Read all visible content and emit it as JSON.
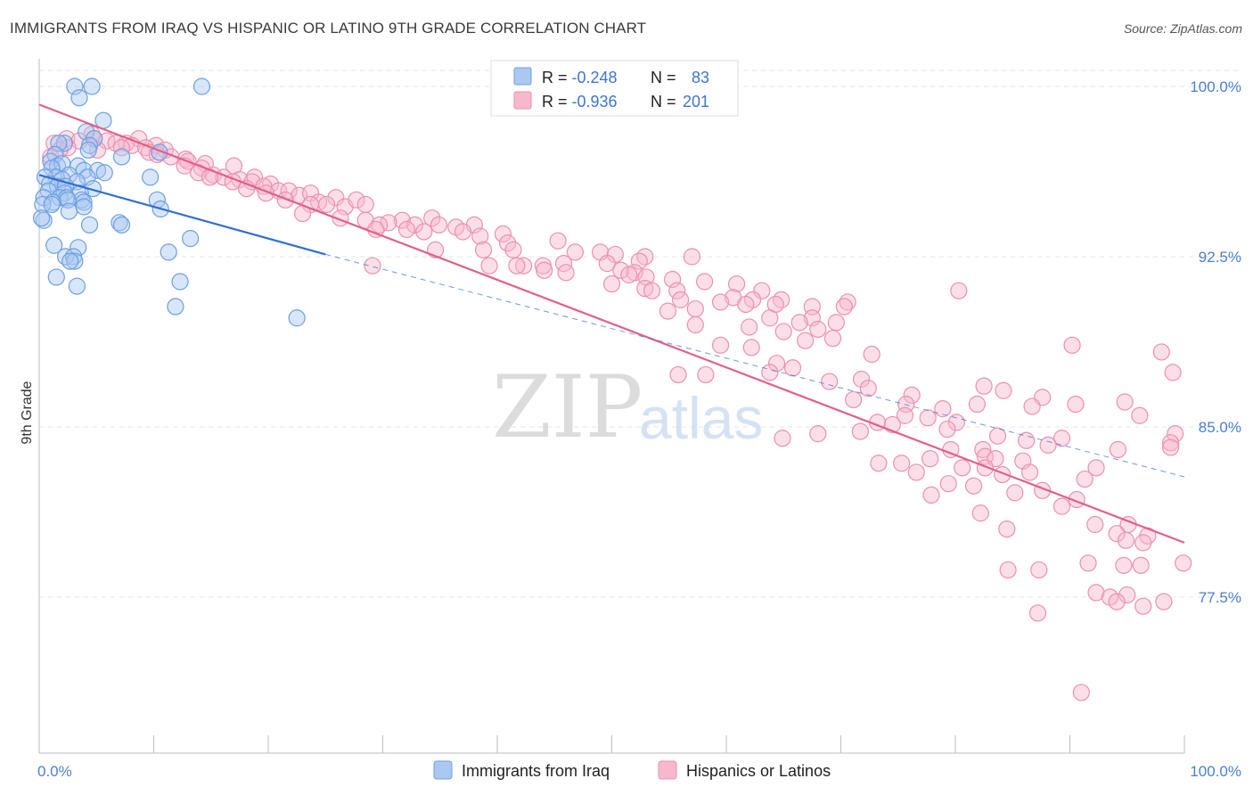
{
  "header": {
    "title": "IMMIGRANTS FROM IRAQ VS HISPANIC OR LATINO 9TH GRADE CORRELATION CHART",
    "source": "Source: ZipAtlas.com"
  },
  "watermark": {
    "zip": "ZIP",
    "atlas": "atlas"
  },
  "stats_legend": {
    "rows": [
      {
        "r_label": "R = ",
        "r_value": "-0.248",
        "n_label": "N = ",
        "n_value": "83"
      },
      {
        "r_label": "R = ",
        "r_value": "-0.936",
        "n_label": "N = ",
        "n_value": "201"
      }
    ]
  },
  "colors": {
    "blue_fill": "#a9c8f2",
    "blue_stroke": "#6d9fe0",
    "blue_line": "#2f6fd1",
    "pink_fill": "#f7b8cb",
    "pink_stroke": "#ee8fae",
    "pink_line": "#e0608a",
    "value_text": "#3f75cc",
    "grid": "#e4e4e4"
  },
  "chart_data": {
    "type": "scatter",
    "title": "IMMIGRANTS FROM IRAQ VS HISPANIC OR LATINO 9TH GRADE CORRELATION CHART",
    "xlabel": "",
    "ylabel": "9th Grade",
    "xlim": [
      0,
      100
    ],
    "ylim": [
      71.5,
      101.5
    ],
    "x_tick_labels": [
      "0.0%",
      "100.0%"
    ],
    "y_ticks": [
      77.5,
      85.0,
      92.5,
      100.0
    ],
    "y_tick_labels": [
      "77.5%",
      "85.0%",
      "92.5%",
      "100.0%"
    ],
    "grid": true,
    "legend_position": "bottom",
    "series": [
      {
        "name": "Immigrants from Iraq",
        "r": -0.248,
        "n": 83,
        "trend": {
          "x": [
            0,
            25
          ],
          "y": [
            96.1,
            92.6
          ]
        },
        "trend_dashed": {
          "x": [
            25,
            100
          ],
          "y": [
            92.6,
            82.8
          ]
        },
        "points": [
          [
            3.1,
            100.0
          ],
          [
            4.6,
            100.0
          ],
          [
            14.2,
            100.0
          ],
          [
            3.5,
            99.5
          ],
          [
            5.6,
            98.5
          ],
          [
            4.1,
            98.0
          ],
          [
            4.8,
            97.7
          ],
          [
            2.2,
            97.5
          ],
          [
            1.7,
            97.5
          ],
          [
            4.4,
            97.4
          ],
          [
            4.3,
            97.2
          ],
          [
            1.4,
            97.0
          ],
          [
            7.2,
            96.9
          ],
          [
            10.5,
            97.1
          ],
          [
            1.0,
            96.7
          ],
          [
            1.6,
            96.5
          ],
          [
            3.4,
            96.5
          ],
          [
            2.0,
            96.6
          ],
          [
            1.1,
            96.4
          ],
          [
            3.9,
            96.3
          ],
          [
            5.1,
            96.3
          ],
          [
            5.7,
            96.2
          ],
          [
            2.6,
            96.1
          ],
          [
            1.5,
            96.0
          ],
          [
            4.2,
            96.0
          ],
          [
            9.7,
            96.0
          ],
          [
            0.5,
            96.0
          ],
          [
            2.0,
            95.9
          ],
          [
            3.3,
            95.8
          ],
          [
            0.9,
            95.7
          ],
          [
            1.6,
            95.6
          ],
          [
            2.3,
            95.6
          ],
          [
            4.7,
            95.5
          ],
          [
            0.8,
            95.4
          ],
          [
            2.2,
            95.3
          ],
          [
            3.6,
            95.3
          ],
          [
            0.4,
            95.1
          ],
          [
            1.8,
            95.1
          ],
          [
            2.4,
            95.1
          ],
          [
            3.7,
            95.0
          ],
          [
            10.3,
            95.0
          ],
          [
            2.5,
            95.0
          ],
          [
            1.2,
            94.9
          ],
          [
            3.9,
            94.9
          ],
          [
            0.3,
            94.8
          ],
          [
            1.1,
            94.8
          ],
          [
            3.9,
            94.7
          ],
          [
            10.6,
            94.6
          ],
          [
            2.6,
            94.5
          ],
          [
            7.0,
            94.0
          ],
          [
            4.4,
            93.9
          ],
          [
            0.4,
            94.1
          ],
          [
            7.2,
            93.9
          ],
          [
            13.2,
            93.3
          ],
          [
            1.3,
            93.0
          ],
          [
            3.4,
            92.9
          ],
          [
            11.3,
            92.7
          ],
          [
            2.3,
            92.5
          ],
          [
            3.0,
            92.5
          ],
          [
            3.1,
            92.3
          ],
          [
            2.7,
            92.3
          ],
          [
            1.5,
            91.6
          ],
          [
            3.3,
            91.2
          ],
          [
            12.3,
            91.4
          ],
          [
            11.9,
            90.3
          ],
          [
            22.5,
            89.8
          ],
          [
            0.2,
            94.2
          ]
        ]
      },
      {
        "name": "Hispanics or Latinos",
        "r": -0.936,
        "n": 201,
        "trend": {
          "x": [
            0,
            100
          ],
          "y": [
            99.2,
            79.9
          ]
        },
        "points": [
          [
            4.6,
            97.9
          ],
          [
            2.4,
            97.7
          ],
          [
            4.8,
            97.7
          ],
          [
            8.7,
            97.7
          ],
          [
            3.5,
            97.6
          ],
          [
            5.9,
            97.6
          ],
          [
            7.6,
            97.5
          ],
          [
            1.3,
            97.5
          ],
          [
            6.7,
            97.5
          ],
          [
            8.1,
            97.4
          ],
          [
            10.2,
            97.4
          ],
          [
            2.5,
            97.3
          ],
          [
            9.3,
            97.3
          ],
          [
            7.2,
            97.3
          ],
          [
            1.8,
            97.2
          ],
          [
            11.0,
            97.2
          ],
          [
            5.1,
            97.2
          ],
          [
            9.6,
            97.1
          ],
          [
            10.3,
            97.0
          ],
          [
            1.0,
            96.9
          ],
          [
            11.5,
            96.9
          ],
          [
            12.8,
            96.8
          ],
          [
            13.0,
            96.7
          ],
          [
            14.5,
            96.6
          ],
          [
            12.7,
            96.5
          ],
          [
            14.2,
            96.4
          ],
          [
            17.0,
            96.5
          ],
          [
            13.9,
            96.2
          ],
          [
            15.2,
            96.1
          ],
          [
            18.8,
            96.0
          ],
          [
            16.1,
            96.0
          ],
          [
            14.9,
            96.0
          ],
          [
            17.5,
            95.9
          ],
          [
            16.9,
            95.8
          ],
          [
            18.6,
            95.8
          ],
          [
            20.2,
            95.7
          ],
          [
            19.6,
            95.6
          ],
          [
            18.1,
            95.5
          ],
          [
            20.9,
            95.4
          ],
          [
            21.8,
            95.4
          ],
          [
            19.8,
            95.3
          ],
          [
            22.7,
            95.2
          ],
          [
            23.7,
            95.3
          ],
          [
            25.9,
            95.1
          ],
          [
            21.5,
            95.0
          ],
          [
            24.4,
            94.9
          ],
          [
            23.7,
            94.8
          ],
          [
            25.1,
            94.8
          ],
          [
            26.7,
            94.7
          ],
          [
            27.7,
            95.0
          ],
          [
            28.5,
            94.8
          ],
          [
            23.0,
            94.4
          ],
          [
            26.3,
            94.2
          ],
          [
            28.5,
            94.1
          ],
          [
            31.7,
            94.1
          ],
          [
            34.3,
            94.2
          ],
          [
            30.5,
            94.0
          ],
          [
            29.7,
            93.9
          ],
          [
            32.8,
            93.9
          ],
          [
            34.9,
            93.9
          ],
          [
            38.0,
            93.9
          ],
          [
            36.4,
            93.8
          ],
          [
            29.4,
            93.7
          ],
          [
            32.1,
            93.7
          ],
          [
            33.6,
            93.6
          ],
          [
            37.0,
            93.6
          ],
          [
            40.5,
            93.5
          ],
          [
            38.5,
            93.4
          ],
          [
            40.9,
            93.1
          ],
          [
            45.3,
            93.2
          ],
          [
            34.6,
            92.8
          ],
          [
            38.8,
            92.8
          ],
          [
            41.4,
            92.8
          ],
          [
            46.8,
            92.7
          ],
          [
            49.0,
            92.7
          ],
          [
            50.3,
            92.6
          ],
          [
            52.9,
            92.5
          ],
          [
            57.0,
            92.5
          ],
          [
            52.4,
            92.3
          ],
          [
            45.8,
            92.2
          ],
          [
            49.6,
            92.2
          ],
          [
            29.1,
            92.1
          ],
          [
            44.0,
            92.1
          ],
          [
            42.3,
            92.1
          ],
          [
            39.3,
            92.1
          ],
          [
            41.7,
            92.1
          ],
          [
            44.1,
            91.9
          ],
          [
            50.8,
            91.9
          ],
          [
            46.0,
            91.8
          ],
          [
            52.0,
            91.8
          ],
          [
            51.5,
            91.7
          ],
          [
            53.0,
            91.6
          ],
          [
            55.3,
            91.5
          ],
          [
            58.1,
            91.4
          ],
          [
            60.9,
            91.3
          ],
          [
            50.0,
            91.3
          ],
          [
            52.9,
            91.1
          ],
          [
            53.5,
            91.0
          ],
          [
            55.7,
            91.0
          ],
          [
            63.1,
            91.0
          ],
          [
            60.6,
            90.7
          ],
          [
            56.0,
            90.6
          ],
          [
            62.3,
            90.6
          ],
          [
            64.8,
            90.6
          ],
          [
            70.6,
            90.5
          ],
          [
            59.5,
            90.5
          ],
          [
            61.7,
            90.4
          ],
          [
            64.3,
            90.4
          ],
          [
            67.5,
            90.3
          ],
          [
            70.3,
            90.3
          ],
          [
            57.3,
            90.2
          ],
          [
            54.9,
            90.1
          ],
          [
            67.5,
            89.8
          ],
          [
            63.8,
            89.8
          ],
          [
            66.4,
            89.6
          ],
          [
            69.6,
            89.6
          ],
          [
            57.3,
            89.5
          ],
          [
            62.0,
            89.4
          ],
          [
            68.0,
            89.3
          ],
          [
            65.0,
            89.2
          ],
          [
            69.3,
            88.9
          ],
          [
            66.9,
            88.8
          ],
          [
            59.5,
            88.6
          ],
          [
            62.2,
            88.5
          ],
          [
            72.7,
            88.2
          ],
          [
            64.4,
            87.8
          ],
          [
            65.8,
            87.6
          ],
          [
            63.8,
            87.4
          ],
          [
            55.8,
            87.3
          ],
          [
            71.8,
            87.1
          ],
          [
            69.0,
            87.0
          ],
          [
            72.4,
            86.7
          ],
          [
            82.5,
            86.8
          ],
          [
            84.2,
            86.6
          ],
          [
            76.2,
            86.4
          ],
          [
            87.6,
            86.3
          ],
          [
            71.1,
            86.2
          ],
          [
            75.7,
            86.0
          ],
          [
            81.9,
            86.0
          ],
          [
            90.5,
            86.0
          ],
          [
            86.7,
            85.9
          ],
          [
            94.8,
            86.1
          ],
          [
            96.1,
            85.5
          ],
          [
            78.9,
            85.8
          ],
          [
            75.6,
            85.5
          ],
          [
            77.6,
            85.4
          ],
          [
            80.1,
            85.2
          ],
          [
            73.2,
            85.2
          ],
          [
            74.5,
            85.1
          ],
          [
            79.3,
            84.9
          ],
          [
            71.7,
            84.8
          ],
          [
            68.0,
            84.7
          ],
          [
            64.9,
            84.5
          ],
          [
            83.7,
            84.6
          ],
          [
            89.3,
            84.5
          ],
          [
            86.2,
            84.4
          ],
          [
            99.2,
            84.7
          ],
          [
            98.8,
            84.3
          ],
          [
            79.6,
            84.0
          ],
          [
            82.4,
            84.0
          ],
          [
            88.1,
            84.2
          ],
          [
            94.2,
            84.0
          ],
          [
            98.8,
            84.1
          ],
          [
            82.6,
            83.7
          ],
          [
            83.5,
            83.6
          ],
          [
            77.8,
            83.6
          ],
          [
            85.9,
            83.5
          ],
          [
            75.3,
            83.4
          ],
          [
            73.3,
            83.4
          ],
          [
            80.6,
            83.2
          ],
          [
            82.6,
            83.2
          ],
          [
            92.3,
            83.2
          ],
          [
            86.5,
            83.0
          ],
          [
            76.6,
            83.0
          ],
          [
            84.1,
            82.9
          ],
          [
            91.3,
            82.7
          ],
          [
            79.4,
            82.5
          ],
          [
            81.6,
            82.4
          ],
          [
            87.6,
            82.2
          ],
          [
            85.2,
            82.1
          ],
          [
            77.9,
            82.0
          ],
          [
            90.6,
            81.8
          ],
          [
            89.3,
            81.5
          ],
          [
            82.2,
            81.2
          ],
          [
            92.2,
            80.7
          ],
          [
            95.1,
            80.7
          ],
          [
            84.5,
            80.5
          ],
          [
            94.1,
            80.3
          ],
          [
            96.8,
            80.2
          ],
          [
            94.9,
            80.0
          ],
          [
            96.4,
            79.9
          ],
          [
            99.9,
            79.0
          ],
          [
            91.6,
            79.0
          ],
          [
            94.7,
            78.9
          ],
          [
            96.2,
            78.9
          ],
          [
            84.6,
            78.7
          ],
          [
            87.3,
            78.7
          ],
          [
            92.3,
            77.7
          ],
          [
            93.5,
            77.5
          ],
          [
            95.0,
            77.6
          ],
          [
            94.1,
            77.3
          ],
          [
            98.2,
            77.3
          ],
          [
            96.4,
            77.1
          ],
          [
            87.2,
            76.8
          ],
          [
            91.0,
            73.3
          ],
          [
            98.0,
            88.3
          ],
          [
            99.0,
            87.4
          ],
          [
            90.2,
            88.6
          ],
          [
            80.3,
            91.0
          ],
          [
            58.2,
            87.3
          ]
        ]
      }
    ]
  },
  "bottom_legend": {
    "items": [
      "Immigrants from Iraq",
      "Hispanics or Latinos"
    ]
  }
}
